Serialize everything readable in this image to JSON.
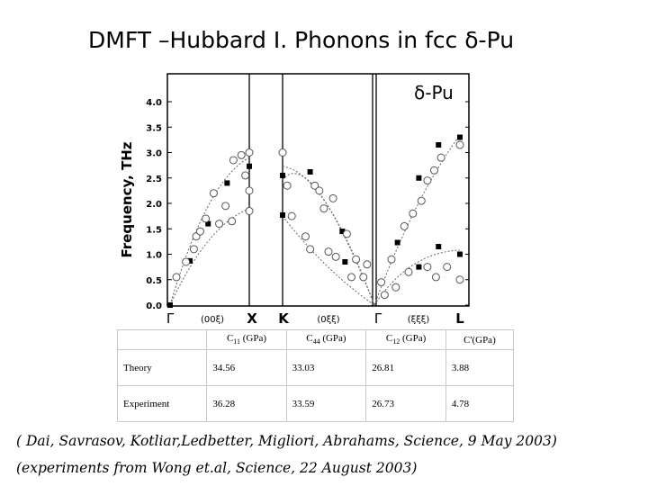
{
  "title": "DMFT –Hubbard I. Phonons in fcc δ-Pu",
  "chart_data": {
    "type": "scatter",
    "title": "δ-Pu",
    "ylabel": "Frequency, THz",
    "ylim": [
      0.0,
      4.3
    ],
    "yticks": [
      "0.0",
      "0.5",
      "1.0",
      "1.5",
      "2.0",
      "2.5",
      "3.0",
      "3.5",
      "4.0"
    ],
    "x_segments": [
      {
        "from": "Γ",
        "to": "X",
        "direction": "(00ξ)"
      },
      {
        "from": "K",
        "to": "Γ",
        "direction": "(0ξξ)"
      },
      {
        "from": "Γ",
        "to": "L",
        "direction": "(ξξξ)"
      }
    ],
    "point_labels": [
      "Γ",
      "X",
      "K",
      "Γ",
      "L"
    ],
    "series": [
      {
        "marker": "filled-square",
        "points": [
          {
            "seg": 0,
            "t": 0.0,
            "y": 0.0
          },
          {
            "seg": 0,
            "t": 0.25,
            "y": 0.87
          },
          {
            "seg": 0,
            "t": 0.48,
            "y": 1.6
          },
          {
            "seg": 0,
            "t": 0.72,
            "y": 2.4
          },
          {
            "seg": 0,
            "t": 1.0,
            "y": 2.73
          },
          {
            "seg": 0,
            "t": 1.0,
            "y": 1.85
          },
          {
            "seg": 1,
            "t": 0.0,
            "y": 2.55
          },
          {
            "seg": 1,
            "t": 0.0,
            "y": 1.77
          },
          {
            "seg": 1,
            "t": 0.3,
            "y": 2.62
          },
          {
            "seg": 1,
            "t": 0.65,
            "y": 1.45
          },
          {
            "seg": 1,
            "t": 0.68,
            "y": 0.85
          },
          {
            "seg": 2,
            "t": 0.27,
            "y": 1.23
          },
          {
            "seg": 2,
            "t": 0.52,
            "y": 2.5
          },
          {
            "seg": 2,
            "t": 0.52,
            "y": 0.75
          },
          {
            "seg": 2,
            "t": 0.75,
            "y": 3.15
          },
          {
            "seg": 2,
            "t": 0.75,
            "y": 1.15
          },
          {
            "seg": 2,
            "t": 1.0,
            "y": 3.3
          },
          {
            "seg": 2,
            "t": 1.0,
            "y": 1.0
          }
        ]
      },
      {
        "marker": "open-circle",
        "points": [
          {
            "seg": 0,
            "t": 0.08,
            "y": 0.55
          },
          {
            "seg": 0,
            "t": 0.2,
            "y": 0.85
          },
          {
            "seg": 0,
            "t": 0.3,
            "y": 1.1
          },
          {
            "seg": 0,
            "t": 0.33,
            "y": 1.35
          },
          {
            "seg": 0,
            "t": 0.38,
            "y": 1.45
          },
          {
            "seg": 0,
            "t": 0.45,
            "y": 1.7
          },
          {
            "seg": 0,
            "t": 0.55,
            "y": 2.2
          },
          {
            "seg": 0,
            "t": 0.62,
            "y": 1.6
          },
          {
            "seg": 0,
            "t": 0.7,
            "y": 1.95
          },
          {
            "seg": 0,
            "t": 0.8,
            "y": 2.85
          },
          {
            "seg": 0,
            "t": 0.78,
            "y": 1.65
          },
          {
            "seg": 0,
            "t": 0.9,
            "y": 2.95
          },
          {
            "seg": 0,
            "t": 0.95,
            "y": 2.55
          },
          {
            "seg": 0,
            "t": 1.0,
            "y": 3.0
          },
          {
            "seg": 0,
            "t": 1.0,
            "y": 2.25
          },
          {
            "seg": 0,
            "t": 1.0,
            "y": 1.85
          },
          {
            "seg": 1,
            "t": 0.0,
            "y": 3.0
          },
          {
            "seg": 1,
            "t": 0.05,
            "y": 2.35
          },
          {
            "seg": 1,
            "t": 0.1,
            "y": 1.75
          },
          {
            "seg": 1,
            "t": 0.25,
            "y": 1.35
          },
          {
            "seg": 1,
            "t": 0.3,
            "y": 1.1
          },
          {
            "seg": 1,
            "t": 0.35,
            "y": 2.35
          },
          {
            "seg": 1,
            "t": 0.4,
            "y": 2.25
          },
          {
            "seg": 1,
            "t": 0.45,
            "y": 1.9
          },
          {
            "seg": 1,
            "t": 0.5,
            "y": 1.05
          },
          {
            "seg": 1,
            "t": 0.55,
            "y": 2.1
          },
          {
            "seg": 1,
            "t": 0.58,
            "y": 0.95
          },
          {
            "seg": 1,
            "t": 0.7,
            "y": 1.4
          },
          {
            "seg": 1,
            "t": 0.75,
            "y": 0.55
          },
          {
            "seg": 1,
            "t": 0.8,
            "y": 0.9
          },
          {
            "seg": 1,
            "t": 0.88,
            "y": 0.55
          },
          {
            "seg": 1,
            "t": 0.92,
            "y": 0.8
          },
          {
            "seg": 2,
            "t": 0.08,
            "y": 0.45
          },
          {
            "seg": 2,
            "t": 0.12,
            "y": 0.2
          },
          {
            "seg": 2,
            "t": 0.2,
            "y": 0.9
          },
          {
            "seg": 2,
            "t": 0.25,
            "y": 0.35
          },
          {
            "seg": 2,
            "t": 0.35,
            "y": 1.55
          },
          {
            "seg": 2,
            "t": 0.4,
            "y": 0.65
          },
          {
            "seg": 2,
            "t": 0.45,
            "y": 1.8
          },
          {
            "seg": 2,
            "t": 0.55,
            "y": 2.05
          },
          {
            "seg": 2,
            "t": 0.62,
            "y": 2.45
          },
          {
            "seg": 2,
            "t": 0.62,
            "y": 0.75
          },
          {
            "seg": 2,
            "t": 0.7,
            "y": 2.65
          },
          {
            "seg": 2,
            "t": 0.72,
            "y": 0.55
          },
          {
            "seg": 2,
            "t": 0.78,
            "y": 2.9
          },
          {
            "seg": 2,
            "t": 0.85,
            "y": 0.75
          },
          {
            "seg": 2,
            "t": 1.0,
            "y": 3.15
          },
          {
            "seg": 2,
            "t": 1.0,
            "y": 0.5
          }
        ]
      }
    ],
    "grid": false
  },
  "table": {
    "headers": [
      "",
      "C11 (GPa)",
      "C44 (GPa)",
      "C12 (GPa)",
      "C'(GPa)"
    ],
    "rows": [
      {
        "label": "Theory",
        "values": [
          "34.56",
          "33.03",
          "26.81",
          "3.88"
        ]
      },
      {
        "label": "Experiment",
        "values": [
          "36.28",
          "33.59",
          "26.73",
          "4.78"
        ]
      }
    ]
  },
  "citations": [
    "( Dai, Savrasov, Kotliar,Ledbetter, Migliori, Abrahams, Science, 9 May 2003)",
    "(experiments from Wong et.al, Science, 22 August 2003)"
  ]
}
